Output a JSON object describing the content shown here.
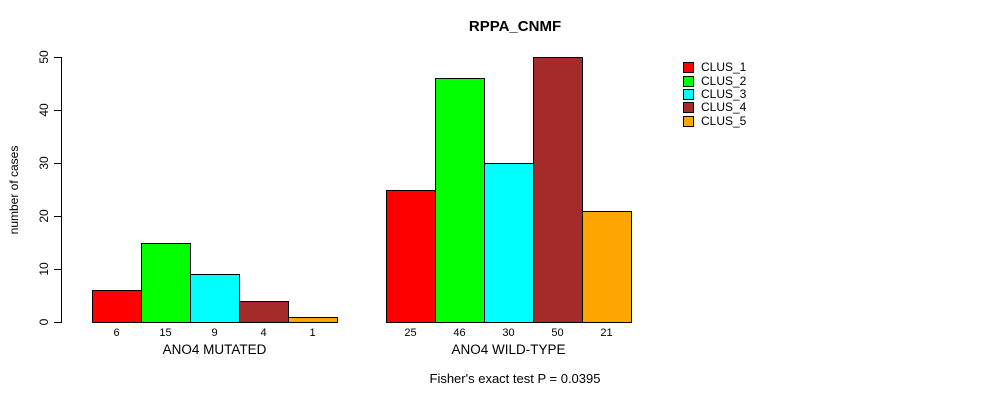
{
  "chart_data": {
    "type": "bar",
    "title": "RPPA_CNMF",
    "ylabel": "number of cases",
    "ylim": [
      0,
      50
    ],
    "yticks": [
      0,
      10,
      20,
      30,
      40,
      50
    ],
    "grid": false,
    "legend_position": "right",
    "categories": [
      "ANO4 MUTATED",
      "ANO4 WILD-TYPE"
    ],
    "series": [
      {
        "name": "CLUS_1",
        "color": "#FF0000",
        "values": [
          6,
          25
        ]
      },
      {
        "name": "CLUS_2",
        "color": "#00FF00",
        "values": [
          15,
          46
        ]
      },
      {
        "name": "CLUS_3",
        "color": "#00FFFF",
        "values": [
          9,
          30
        ]
      },
      {
        "name": "CLUS_4",
        "color": "#A52A2A",
        "values": [
          4,
          50
        ]
      },
      {
        "name": "CLUS_5",
        "color": "#FFA500",
        "values": [
          1,
          21
        ]
      }
    ],
    "annotation": "Fisher's exact test P = 0.0395"
  }
}
